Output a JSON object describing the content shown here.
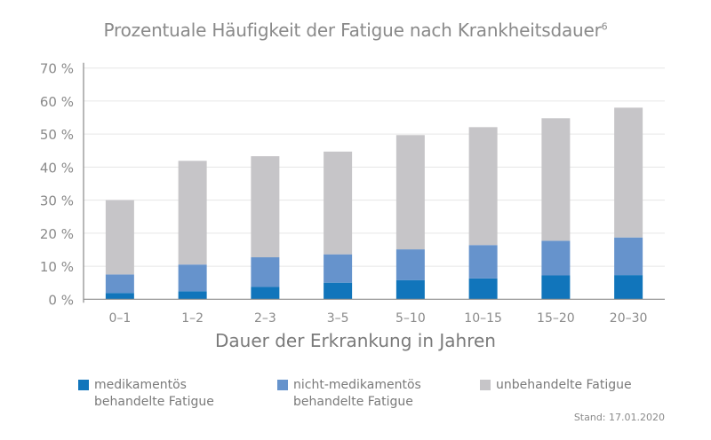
{
  "chart_data": {
    "type": "bar",
    "stacked": true,
    "title": "Prozentuale Häufigkeit der Fatigue nach Krankheitsdauer",
    "title_superscript": "6",
    "xlabel": "Dauer der Erkrankung in Jahren",
    "ylabel": "",
    "ylim": [
      0,
      70
    ],
    "yticks": [
      "0 %",
      "10 %",
      "20 %",
      "30 %",
      "40 %",
      "50 %",
      "60 %",
      "70 %"
    ],
    "grid": true,
    "legend_placement": "bottom",
    "categories": [
      "0–1",
      "1–2",
      "2–3",
      "3–5",
      "5–10",
      "10–15",
      "15–20",
      "20–30"
    ],
    "series": [
      {
        "name": "medikamentös behandelte Fatigue",
        "name_lines": [
          "medikamentös",
          "behandelte Fatigue"
        ],
        "color": "#1175bb",
        "values": [
          1.9,
          2.4,
          3.7,
          5.0,
          5.8,
          6.3,
          7.2,
          7.3
        ]
      },
      {
        "name": "nicht-medikamentös behandelte Fatigue",
        "name_lines": [
          "nicht-medikamentös",
          "behandelte Fatigue"
        ],
        "color": "#6693cc",
        "values": [
          5.6,
          8.1,
          9.0,
          8.6,
          9.3,
          10.1,
          10.5,
          11.4
        ]
      },
      {
        "name": "unbehandelte Fatigue",
        "name_lines": [
          "unbehandelte Fatigue"
        ],
        "color": "#c6c5c8",
        "values": [
          22.5,
          31.4,
          30.6,
          31.1,
          34.6,
          35.7,
          37.1,
          39.3
        ]
      }
    ]
  },
  "footnote": "Stand: 17.01.2020"
}
